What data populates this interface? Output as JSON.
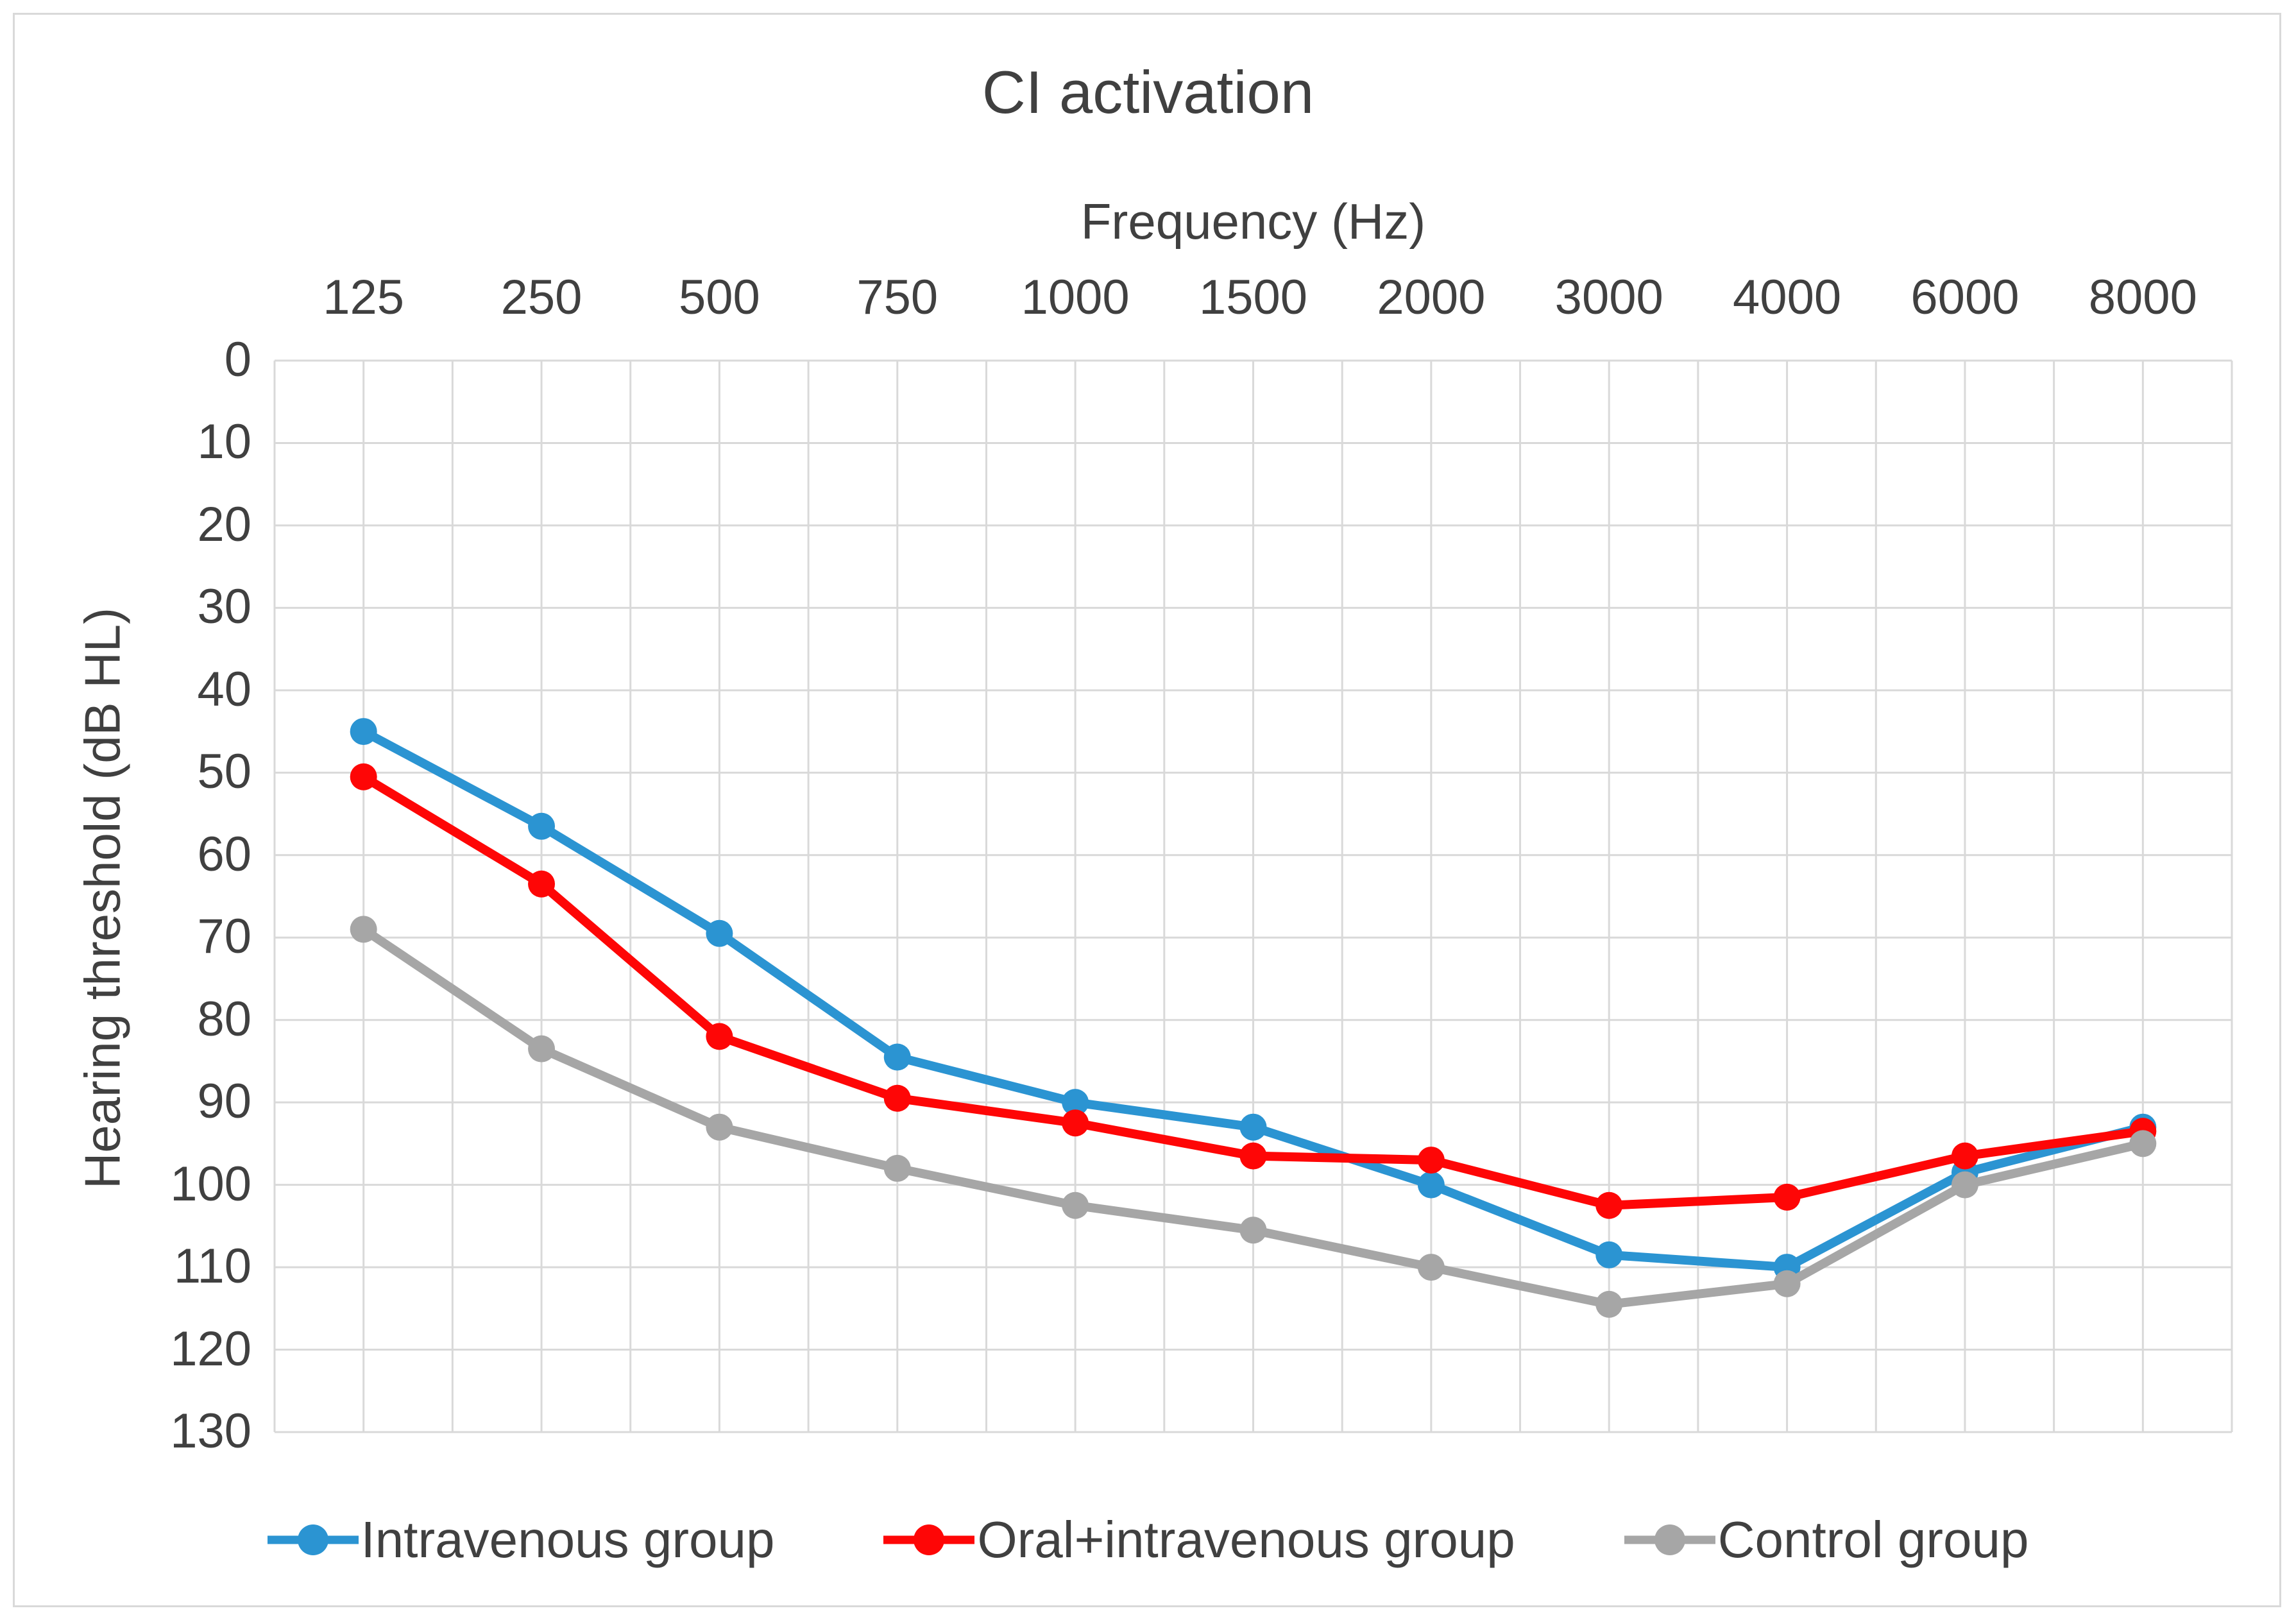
{
  "chart_data": {
    "type": "line",
    "title": "CI activation",
    "xlabel": "Frequency (Hz)",
    "ylabel": "Hearing threshold (dB HL)",
    "categories": [
      "125",
      "250",
      "500",
      "750",
      "1000",
      "1500",
      "2000",
      "3000",
      "4000",
      "6000",
      "8000"
    ],
    "y_axis": {
      "min": 0,
      "max": 130,
      "step": 10,
      "inverted": true,
      "ticks": [
        0,
        10,
        20,
        30,
        40,
        50,
        60,
        70,
        80,
        90,
        100,
        110,
        120,
        130
      ]
    },
    "series": [
      {
        "name": "Intravenous group",
        "color": "#2B94D2",
        "values": [
          45,
          56.5,
          69.5,
          84.5,
          90,
          93,
          100,
          108.5,
          110,
          98.5,
          93
        ]
      },
      {
        "name": "Oral+intravenous group",
        "color": "#FE0606",
        "values": [
          50.5,
          63.5,
          82,
          89.5,
          92.5,
          96.5,
          97,
          102.5,
          101.5,
          96.5,
          93.5
        ]
      },
      {
        "name": "Control group",
        "color": "#A6A6A6",
        "values": [
          69,
          83.5,
          93,
          98,
          102.5,
          105.5,
          110,
          114.5,
          112,
          100,
          95
        ]
      }
    ],
    "legend_position": "bottom",
    "grid": true,
    "grid_color": "#D9D9D9",
    "text_color": "#404040",
    "x_axis_position": "top"
  }
}
